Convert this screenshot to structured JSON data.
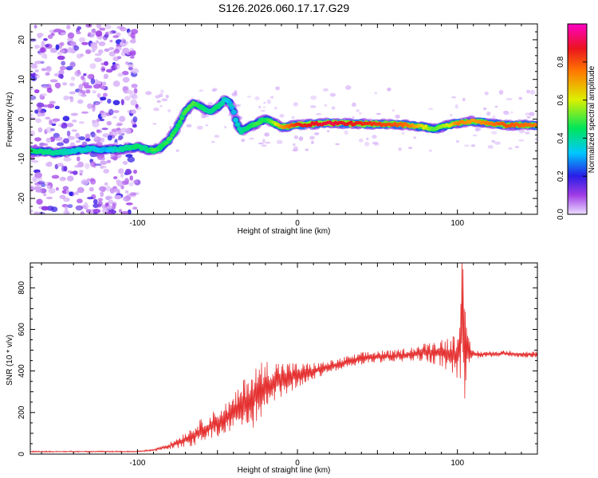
{
  "chart_data": [
    {
      "type": "heatmap",
      "title": "S126.2026.060.17.17.G29",
      "xlabel": "Height of straight line (km)",
      "ylabel": "Frequency (Hz)",
      "xlim": [
        -167,
        150
      ],
      "ylim": [
        -24,
        24
      ],
      "xticks": [
        -100,
        0,
        100
      ],
      "xtick_labels": [
        "-100",
        "0",
        "100"
      ],
      "yticks": [
        -20,
        -10,
        0,
        10,
        20
      ],
      "ytick_labels": [
        "-20",
        "-10",
        "0",
        "10",
        "20"
      ],
      "colorbar": {
        "label": "Normalized spectral amplitude",
        "range": [
          0,
          1
        ],
        "ticks": [
          0.0,
          0.2,
          0.4,
          0.6,
          0.8
        ],
        "tick_labels": [
          "0.0",
          "0.2",
          "0.4",
          "0.6",
          "0.8"
        ]
      },
      "noise_region_x": [
        -167,
        -100
      ],
      "ridge": {
        "x": [
          -167,
          -150,
          -140,
          -130,
          -120,
          -110,
          -100,
          -95,
          -90,
          -85,
          -80,
          -75,
          -70,
          -65,
          -60,
          -55,
          -50,
          -45,
          -42,
          -40,
          -38,
          -35,
          -30,
          -25,
          -20,
          -15,
          -10,
          0,
          20,
          40,
          60,
          70,
          80,
          85,
          90,
          95,
          100,
          110,
          130,
          150
        ],
        "freq": [
          -8,
          -8.5,
          -8,
          -7.5,
          -7.8,
          -7.5,
          -7,
          -7.5,
          -8,
          -7,
          -5,
          -2,
          2,
          4,
          3,
          2,
          3,
          5,
          4,
          2,
          -1,
          -3,
          -2,
          -1,
          0,
          -1,
          -2,
          -1.5,
          -1,
          -1.2,
          -1.3,
          -1.5,
          -2,
          -2.5,
          -2,
          -1.5,
          -1,
          -0.5,
          -1.5,
          -1.5
        ],
        "amp": [
          0.45,
          0.4,
          0.35,
          0.35,
          0.3,
          0.4,
          0.45,
          0.4,
          0.5,
          0.45,
          0.5,
          0.45,
          0.5,
          0.5,
          0.45,
          0.4,
          0.45,
          0.35,
          0.3,
          0.3,
          0.35,
          0.4,
          0.45,
          0.5,
          0.45,
          0.55,
          0.7,
          0.85,
          0.9,
          0.85,
          0.8,
          0.75,
          0.6,
          0.5,
          0.55,
          0.6,
          0.75,
          0.7,
          0.8,
          0.75
        ]
      }
    },
    {
      "type": "line",
      "title": "",
      "xlabel": "Height of straight line (km)",
      "ylabel": "SNR (10 * v/v)",
      "xlim": [
        -167,
        150
      ],
      "ylim": [
        0,
        920
      ],
      "xticks": [
        -100,
        0,
        100
      ],
      "xtick_labels": [
        "-100",
        "0",
        "100"
      ],
      "yticks": [
        0,
        200,
        400,
        600,
        800
      ],
      "ytick_labels": [
        "0",
        "200",
        "400",
        "600",
        "800"
      ],
      "line_color": "#e53030",
      "series": [
        {
          "name": "SNR",
          "x": [
            -167,
            -140,
            -120,
            -100,
            -90,
            -80,
            -70,
            -60,
            -50,
            -40,
            -30,
            -20,
            -10,
            0,
            10,
            20,
            30,
            40,
            50,
            60,
            70,
            80,
            90,
            95,
            100,
            102,
            103,
            104,
            106,
            110,
            120,
            130,
            140,
            150
          ],
          "y": [
            12,
            12,
            12,
            12,
            20,
            40,
            70,
            110,
            150,
            200,
            260,
            320,
            360,
            380,
            400,
            420,
            440,
            460,
            470,
            470,
            480,
            490,
            490,
            480,
            470,
            600,
            900,
            500,
            480,
            480,
            480,
            485,
            480,
            480
          ],
          "noise_amp": [
            3,
            3,
            3,
            3,
            5,
            15,
            40,
            60,
            70,
            80,
            150,
            140,
            90,
            60,
            40,
            30,
            30,
            30,
            30,
            30,
            35,
            45,
            70,
            90,
            120,
            250,
            350,
            300,
            100,
            20,
            15,
            15,
            15,
            15
          ]
        }
      ]
    }
  ]
}
